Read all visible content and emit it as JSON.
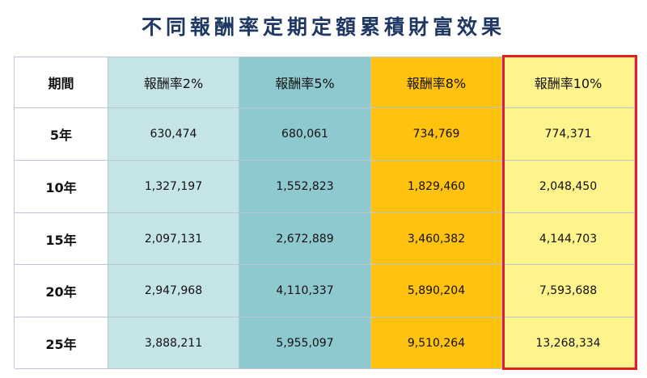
{
  "title": "不同報酬率定期定額累積財富效果",
  "table": {
    "headers": [
      "期間",
      "報酬率2%",
      "報酬率5%",
      "報酬率8%",
      "報酬率10%"
    ],
    "rows": [
      {
        "period": "5年",
        "values": [
          "630,474",
          "680,061",
          "734,769",
          "774,371"
        ]
      },
      {
        "period": "10年",
        "values": [
          "1,327,197",
          "1,552,823",
          "1,829,460",
          "2,048,450"
        ]
      },
      {
        "period": "15年",
        "values": [
          "2,097,131",
          "2,672,889",
          "3,460,382",
          "4,144,703"
        ]
      },
      {
        "period": "20年",
        "values": [
          "2,947,968",
          "4,110,337",
          "5,890,204",
          "7,593,688"
        ]
      },
      {
        "period": "25年",
        "values": [
          "3,888,211",
          "5,955,097",
          "9,510,264",
          "13,268,334"
        ]
      }
    ]
  },
  "colors": {
    "title": "#1f3864",
    "col_2pct": "#c5e4e8",
    "col_5pct": "#8ec9cf",
    "col_8pct": "#ffc20e",
    "col_10pct": "#fff38c",
    "highlight_border": "#e0211d"
  }
}
